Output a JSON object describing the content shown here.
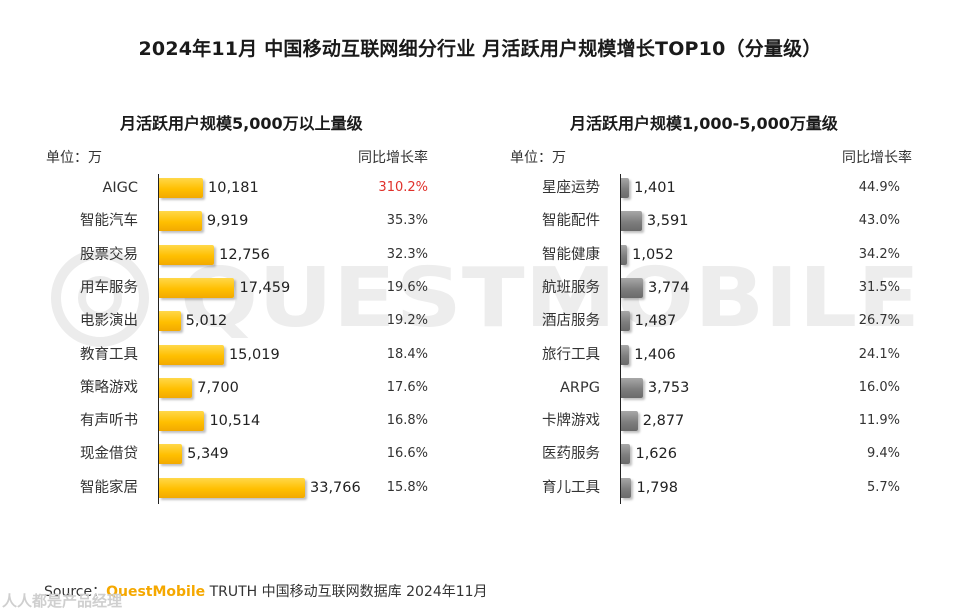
{
  "title": "2024年11月 中国移动互联网细分行业 月活跃用户规模增长TOP10（分量级）",
  "chart_data": [
    {
      "type": "bar",
      "orientation": "horizontal",
      "title": "月活跃用户规模5,000万以上量级",
      "unit_label": "单位：万",
      "growth_label": "同比增长率",
      "color": "#ffc000",
      "highlight_color": "#e0312b",
      "categories": [
        "AIGC",
        "智能汽车",
        "股票交易",
        "用车服务",
        "电影演出",
        "教育工具",
        "策略游戏",
        "有声听书",
        "现金借贷",
        "智能家居"
      ],
      "values": [
        10181,
        9919,
        12756,
        17459,
        5012,
        15019,
        7700,
        10514,
        5349,
        33766
      ],
      "value_labels": [
        "10,181",
        "9,919",
        "12,756",
        "17,459",
        "5,012",
        "15,019",
        "7,700",
        "10,514",
        "5,349",
        "33,766"
      ],
      "growth": [
        "310.2%",
        "35.3%",
        "32.3%",
        "19.6%",
        "19.2%",
        "18.4%",
        "17.6%",
        "16.8%",
        "16.6%",
        "15.8%"
      ],
      "highlight_index": 0
    },
    {
      "type": "bar",
      "orientation": "horizontal",
      "title": "月活跃用户规模1,000-5,000万量级",
      "unit_label": "单位：万",
      "growth_label": "同比增长率",
      "color": "#808080",
      "categories": [
        "星座运势",
        "智能配件",
        "智能健康",
        "航班服务",
        "酒店服务",
        "旅行工具",
        "ARPG",
        "卡牌游戏",
        "医药服务",
        "育儿工具"
      ],
      "values": [
        1401,
        3591,
        1052,
        3774,
        1487,
        1406,
        3753,
        2877,
        1626,
        1798
      ],
      "value_labels": [
        "1,401",
        "3,591",
        "1,052",
        "3,774",
        "1,487",
        "1,406",
        "3,753",
        "2,877",
        "1,626",
        "1,798"
      ],
      "growth": [
        "44.9%",
        "43.0%",
        "34.2%",
        "31.5%",
        "26.7%",
        "24.1%",
        "16.0%",
        "11.9%",
        "9.4%",
        "5.7%"
      ]
    }
  ],
  "watermark": "QUESTMOBILE",
  "source": {
    "prefix": "Source：",
    "brand": "QuestMobile",
    "rest": " TRUTH 中国移动互联网数据库 2024年11月"
  },
  "stamp": "人人都是产品经理"
}
